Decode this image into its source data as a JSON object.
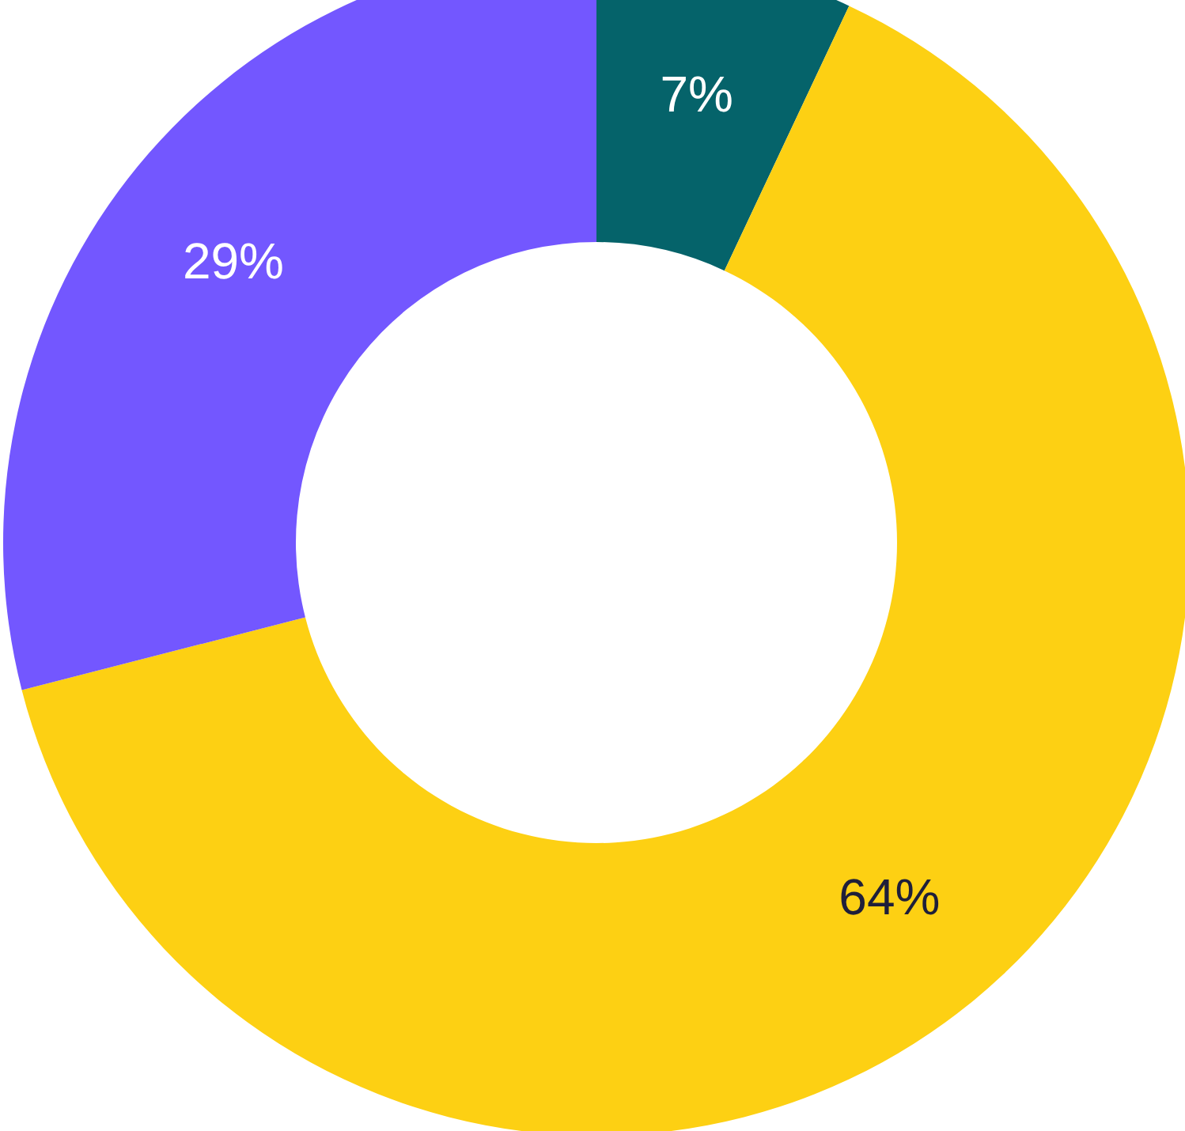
{
  "chart_data": {
    "type": "donut",
    "categories": [
      null,
      null,
      null
    ],
    "values": [
      7,
      64,
      29
    ],
    "colors": [
      "#05636a",
      "#fdd013",
      "#7357ff"
    ],
    "value_labels": [
      "7%",
      "64%",
      "29%"
    ]
  }
}
